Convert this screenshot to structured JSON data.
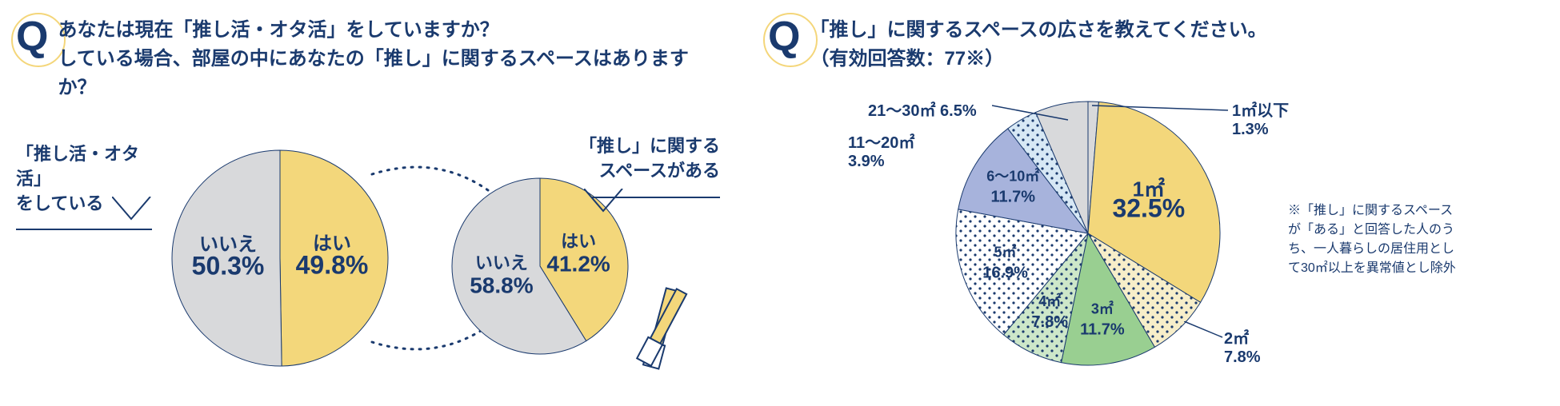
{
  "colors": {
    "navy": "#1a3a6e",
    "yellow": "#f3d77b",
    "yellow_dark": "#e8c85f",
    "grey": "#d8d9db",
    "green": "#99cf91",
    "blue": "#a7b3dc",
    "lightblue_dot": "#d7e8f5",
    "lightyellow_dot": "#f7eec9",
    "white": "#ffffff"
  },
  "left": {
    "question_line1": "あなたは現在「推し活・オタ活」をしていますか？",
    "question_line2": "している場合、部屋の中にあなたの「推し」に関するスペースはありますか？",
    "callout1_line1": "「推し活・オタ活」",
    "callout1_line2": "をしている",
    "callout2_line1": "「推し」に関する",
    "callout2_line2": "スペースがある",
    "pie1": {
      "slices": [
        {
          "label": "はい",
          "value": 49.8,
          "pct": "49.8%",
          "fill": "#f3d77b"
        },
        {
          "label": "いいえ",
          "value": 50.3,
          "pct": "50.3%",
          "fill": "#d8d9db"
        }
      ]
    },
    "pie2": {
      "slices": [
        {
          "label": "はい",
          "value": 41.2,
          "pct": "41.2%",
          "fill": "#f3d77b"
        },
        {
          "label": "いいえ",
          "value": 58.8,
          "pct": "58.8%",
          "fill": "#d8d9db"
        }
      ]
    }
  },
  "right": {
    "question_line1": "「推し」に関するスペースの広さを教えてください。",
    "question_line2": "（有効回答数：77※）",
    "note": "※「推し」に関するスペースが「ある」と回答した人のうち、一人暮らしの居住用として30㎡以上を異常値とし除外",
    "ext_labels": {
      "l1": "1㎡以下",
      "l1p": "1.3%",
      "l5": "2㎡",
      "l5p": "7.8%",
      "l8": "11〜20㎡",
      "l8p": "3.9%",
      "l9": "21〜30㎡ 6.5%"
    },
    "pie": {
      "slices": [
        {
          "label": "1㎡以下",
          "pct": "1.3%",
          "value": 1.3,
          "fill": "#d8d9db",
          "pattern": null,
          "ext": true
        },
        {
          "label": "1㎡",
          "pct": "32.5%",
          "value": 32.5,
          "fill": "#f3d77b",
          "pattern": null
        },
        {
          "label": "2㎡",
          "pct": "7.8%",
          "value": 7.8,
          "fill": "#f7eec9",
          "pattern": "dots-navy",
          "ext": true
        },
        {
          "label": "3㎡",
          "pct": "11.7%",
          "value": 11.7,
          "fill": "#99cf91",
          "pattern": null
        },
        {
          "label": "4㎡",
          "pct": "7.8%",
          "value": 7.8,
          "fill": "#cde7c9",
          "pattern": "dots-navy"
        },
        {
          "label": "5㎡",
          "pct": "16.9%",
          "value": 16.9,
          "fill": "#ffffff",
          "pattern": "dots-navy"
        },
        {
          "label": "6〜10㎡",
          "pct": "11.7%",
          "value": 11.7,
          "fill": "#a7b3dc",
          "pattern": null
        },
        {
          "label": "11〜20㎡",
          "pct": "3.9%",
          "value": 3.9,
          "fill": "#d7e8f5",
          "pattern": "dots-navy",
          "ext": true
        },
        {
          "label": "21〜30㎡",
          "pct": "6.5%",
          "value": 6.5,
          "fill": "#d8d9db",
          "pattern": null,
          "ext": true
        }
      ]
    }
  }
}
